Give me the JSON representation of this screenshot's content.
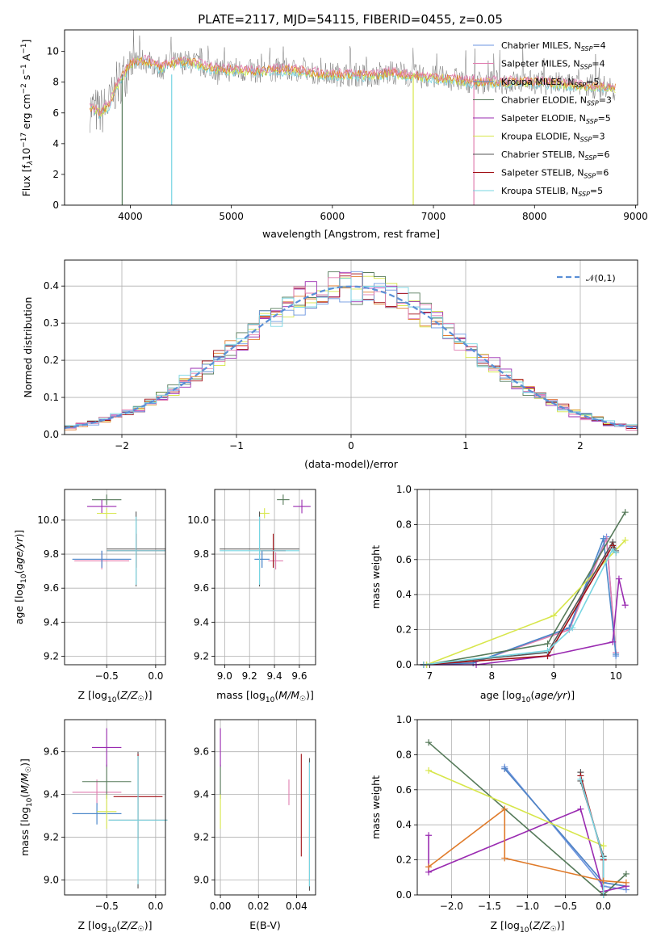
{
  "figure": {
    "title": "PLATE=2117, MJD=54115, FIBERID=0455, z=0.05",
    "models": [
      "Chabrier MILES",
      "Salpeter MILES",
      "Kroupa MILES",
      "Chabrier ELODIE",
      "Salpeter ELODIE",
      "Kroupa ELODIE",
      "Chabrier STELIB",
      "Salpeter STELIB",
      "Kroupa STELIB"
    ],
    "colors": [
      "#6b95e0",
      "#e07eb0",
      "#4a87c8",
      "#567a5a",
      "#9a2bb1",
      "#d7e64a",
      "#555555",
      "#a00f14",
      "#77d5e2"
    ]
  },
  "chart_data": [
    {
      "type": "line",
      "panel": "spectrum",
      "xlabel": "wavelength [Angstrom, rest frame]",
      "ylabel": "Flux [f_λ 10^-17 erg cm^-2 s^-1 A^-1]",
      "xlim": [
        3350,
        9020
      ],
      "ylim": [
        0,
        11.4
      ],
      "xticks": [
        "4000",
        "5000",
        "6000",
        "7000",
        "8000",
        "9000"
      ],
      "yticks": [
        "0",
        "2",
        "4",
        "6",
        "8",
        "10"
      ],
      "legend_position": "right",
      "legend": [
        "Chabrier MILES, N_SSP=4",
        "Salpeter MILES, N_SSP=4",
        "Kroupa MILES, N_SSP=5",
        "Chabrier ELODIE, N_SSP=3",
        "Salpeter ELODIE, N_SSP=5",
        "Kroupa ELODIE, N_SSP=3",
        "Chabrier STELIB, N_SSP=6",
        "Salpeter STELIB, N_SSP=6",
        "Kroupa STELIB, N_SSP=5"
      ],
      "spectrum_approx": {
        "x": [
          3600,
          3650,
          3700,
          3750,
          3800,
          3850,
          3900,
          3950,
          4000,
          4100,
          4200,
          4300,
          4400,
          4500,
          4600,
          4800,
          5000,
          5200,
          5400,
          5600,
          5800,
          6000,
          6200,
          6400,
          6600,
          6800,
          7000,
          7200,
          7400,
          7600,
          7800,
          8000,
          8200,
          8400,
          8600,
          8800
        ],
        "y": [
          6.3,
          6.2,
          6.0,
          6.3,
          6.6,
          7.6,
          8.1,
          8.6,
          9.2,
          9.4,
          9.3,
          8.9,
          9.2,
          9.3,
          9.3,
          8.9,
          8.8,
          8.7,
          8.8,
          8.8,
          8.6,
          8.5,
          8.5,
          8.4,
          8.6,
          8.4,
          8.3,
          8.2,
          8.0,
          8.0,
          8.0,
          8.0,
          7.9,
          7.8,
          7.7,
          7.6
        ]
      },
      "dropouts": [
        {
          "x": 3920,
          "series": "Chabrier ELODIE"
        },
        {
          "x": 4410,
          "series": "Kroupa STELIB"
        },
        {
          "x": 6800,
          "series": "Kroupa ELODIE"
        },
        {
          "x": 7400,
          "series": "Salpeter MILES"
        }
      ]
    },
    {
      "type": "area",
      "panel": "residual-histogram",
      "xlabel": "(data-model)/error",
      "ylabel": "Normed distribution",
      "xlim": [
        -2.5,
        2.5
      ],
      "ylim": [
        0,
        0.47
      ],
      "xticks": [
        "−2",
        "−1",
        "0",
        "1",
        "2"
      ],
      "yticks": [
        "0.0",
        "0.1",
        "0.2",
        "0.3",
        "0.4"
      ],
      "grid": true,
      "legend_position": "top-right",
      "legend": [
        "𝒩(0,1)"
      ],
      "reference_curve": {
        "name": "𝒩(0,1)",
        "mean": 0,
        "sigma": 1,
        "color": "#5a8fd6"
      },
      "bin_width": 0.1
    },
    {
      "type": "scatter",
      "panel": "age-vs-Z",
      "xlabel": "Z [log10(Z/Z☉)]",
      "ylabel": "age [log10(age/yr)]",
      "xlim": [
        -0.93,
        0.1
      ],
      "ylim": [
        9.15,
        10.18
      ],
      "xticks": [
        "−0.5",
        "0.0"
      ],
      "yticks": [
        "9.2",
        "9.4",
        "9.6",
        "9.8",
        "10.0"
      ],
      "grid": true,
      "points": [
        {
          "series": "Chabrier MILES",
          "x": -0.55,
          "y": 9.77,
          "xerr": 0.3,
          "yerr": 0.05
        },
        {
          "series": "Salpeter MILES",
          "x": -0.55,
          "y": 9.76,
          "xerr": 0.28,
          "yerr": 0.05
        },
        {
          "series": "Kroupa MILES",
          "x": -0.55,
          "y": 9.77,
          "xerr": 0.3,
          "yerr": 0.05
        },
        {
          "series": "Chabrier ELODIE",
          "x": -0.5,
          "y": 10.12,
          "xerr": 0.15,
          "yerr": 0.03
        },
        {
          "series": "Salpeter ELODIE",
          "x": -0.55,
          "y": 10.08,
          "xerr": 0.15,
          "yerr": 0.04
        },
        {
          "series": "Kroupa ELODIE",
          "x": -0.5,
          "y": 10.04,
          "xerr": 0.1,
          "yerr": 0.03
        },
        {
          "series": "Chabrier STELIB",
          "x": -0.2,
          "y": 9.83,
          "xerr": 0.3,
          "yerr": 0.22
        },
        {
          "series": "Salpeter STELIB",
          "x": -0.2,
          "y": 9.82,
          "xerr": 0.3,
          "yerr": 0.1
        },
        {
          "series": "Kroupa STELIB",
          "x": -0.2,
          "y": 9.82,
          "xerr": 0.3,
          "yerr": 0.2
        }
      ]
    },
    {
      "type": "scatter",
      "panel": "age-vs-mass",
      "xlabel": "mass [log10(M/M☉)]",
      "ylabel": "",
      "xlim": [
        8.92,
        9.73
      ],
      "ylim": [
        9.15,
        10.18
      ],
      "xticks": [
        "9.0",
        "9.2",
        "9.4",
        "9.6"
      ],
      "yticks": [
        "9.2",
        "9.4",
        "9.6",
        "9.8",
        "10.0"
      ],
      "grid": true,
      "points": [
        {
          "series": "Chabrier MILES",
          "x": 9.3,
          "y": 9.77,
          "xerr": 0.06,
          "yerr": 0.05
        },
        {
          "series": "Salpeter MILES",
          "x": 9.41,
          "y": 9.76,
          "xerr": 0.06,
          "yerr": 0.05
        },
        {
          "series": "Kroupa MILES",
          "x": 9.3,
          "y": 9.77,
          "xerr": 0.06,
          "yerr": 0.05
        },
        {
          "series": "Chabrier ELODIE",
          "x": 9.47,
          "y": 10.12,
          "xerr": 0.05,
          "yerr": 0.03
        },
        {
          "series": "Salpeter ELODIE",
          "x": 9.62,
          "y": 10.08,
          "xerr": 0.07,
          "yerr": 0.04
        },
        {
          "series": "Kroupa ELODIE",
          "x": 9.32,
          "y": 10.04,
          "xerr": 0.04,
          "yerr": 0.03
        },
        {
          "series": "Chabrier STELIB",
          "x": 9.28,
          "y": 9.83,
          "xerr": 0.32,
          "yerr": 0.22
        },
        {
          "series": "Salpeter STELIB",
          "x": 9.39,
          "y": 9.82,
          "xerr": 0.1,
          "yerr": 0.1
        },
        {
          "series": "Kroupa STELIB",
          "x": 9.28,
          "y": 9.82,
          "xerr": 0.32,
          "yerr": 0.2
        }
      ]
    },
    {
      "type": "line",
      "panel": "mass-weight-vs-age",
      "xlabel": "age [log10(age/yr)]",
      "ylabel": "mass weight",
      "xlim": [
        6.8,
        10.35
      ],
      "ylim": [
        0,
        1.0
      ],
      "xticks": [
        "7",
        "8",
        "9",
        "10"
      ],
      "yticks": [
        "0.0",
        "0.2",
        "0.4",
        "0.6",
        "0.8",
        "1.0"
      ],
      "grid": true,
      "series": [
        {
          "name": "Chabrier MILES",
          "x": [
            6.9,
            7.7,
            9.25,
            9.85,
            10.0
          ],
          "y": [
            0.0,
            0.01,
            0.21,
            0.73,
            0.05
          ]
        },
        {
          "name": "Salpeter MILES",
          "x": [
            6.9,
            7.7,
            9.25,
            9.85,
            10.0
          ],
          "y": [
            0.0,
            0.01,
            0.2,
            0.72,
            0.07
          ]
        },
        {
          "name": "Kroupa MILES",
          "x": [
            6.9,
            7.7,
            9.25,
            9.8,
            10.0
          ],
          "y": [
            0.0,
            0.01,
            0.21,
            0.72,
            0.06
          ]
        },
        {
          "name": "Chabrier ELODIE",
          "x": [
            6.95,
            8.9,
            10.15
          ],
          "y": [
            0.0,
            0.12,
            0.87
          ]
        },
        {
          "name": "Salpeter ELODIE",
          "x": [
            6.9,
            7.75,
            8.9,
            9.95,
            10.05,
            10.15
          ],
          "y": [
            0.0,
            0.0,
            0.05,
            0.13,
            0.49,
            0.34
          ]
        },
        {
          "name": "Kroupa ELODIE",
          "x": [
            6.95,
            9.0,
            10.15
          ],
          "y": [
            0.0,
            0.28,
            0.71
          ]
        },
        {
          "name": "Chabrier STELIB",
          "x": [
            6.9,
            8.9,
            9.95,
            10.0
          ],
          "y": [
            0.0,
            0.07,
            0.7,
            0.65
          ]
        },
        {
          "name": "Salpeter STELIB",
          "x": [
            6.9,
            8.9,
            9.95,
            10.0
          ],
          "y": [
            0.0,
            0.05,
            0.68,
            0.64
          ]
        },
        {
          "name": "Kroupa STELIB",
          "x": [
            6.9,
            8.9,
            9.3,
            9.95,
            10.0
          ],
          "y": [
            0.0,
            0.08,
            0.21,
            0.66,
            0.64
          ]
        }
      ]
    },
    {
      "type": "scatter",
      "panel": "mass-vs-Z",
      "xlabel": "Z [log10(Z/Z☉)]",
      "ylabel": "mass [log10(M/M☉)]",
      "xlim": [
        -0.93,
        0.1
      ],
      "ylim": [
        8.93,
        9.75
      ],
      "xticks": [
        "−0.5",
        "0.0"
      ],
      "yticks": [
        "9.0",
        "9.2",
        "9.4",
        "9.6"
      ],
      "grid": true,
      "points": [
        {
          "series": "Chabrier MILES",
          "x": -0.6,
          "y": 9.31,
          "xerr": 0.25,
          "yerr": 0.05
        },
        {
          "series": "Salpeter MILES",
          "x": -0.6,
          "y": 9.41,
          "xerr": 0.25,
          "yerr": 0.06
        },
        {
          "series": "Kroupa MILES",
          "x": -0.6,
          "y": 9.31,
          "xerr": 0.25,
          "yerr": 0.05
        },
        {
          "series": "Chabrier ELODIE",
          "x": -0.5,
          "y": 9.46,
          "xerr": 0.25,
          "yerr": 0.08
        },
        {
          "series": "Salpeter ELODIE",
          "x": -0.5,
          "y": 9.62,
          "xerr": 0.15,
          "yerr": 0.09
        },
        {
          "series": "Kroupa ELODIE",
          "x": -0.5,
          "y": 9.32,
          "xerr": 0.1,
          "yerr": 0.08
        },
        {
          "series": "Chabrier STELIB",
          "x": -0.18,
          "y": 9.28,
          "xerr": 0.3,
          "yerr": 0.32
        },
        {
          "series": "Salpeter STELIB",
          "x": -0.18,
          "y": 9.39,
          "xerr": 0.25,
          "yerr": 0.2
        },
        {
          "series": "Kroupa STELIB",
          "x": -0.18,
          "y": 9.28,
          "xerr": 0.3,
          "yerr": 0.3
        }
      ]
    },
    {
      "type": "scatter",
      "panel": "mass-vs-ebv",
      "xlabel": "E(B-V)",
      "ylabel": "",
      "xlim": [
        -0.003,
        0.05
      ],
      "ylim": [
        8.93,
        9.75
      ],
      "xticks": [
        "0.00",
        "0.02",
        "0.04"
      ],
      "yticks": [
        "9.0",
        "9.2",
        "9.4",
        "9.6"
      ],
      "grid": true,
      "points": [
        {
          "series": "Chabrier ELODIE",
          "x": 0.0,
          "y": 9.46,
          "yerr": 0.08
        },
        {
          "series": "Salpeter ELODIE",
          "x": 0.0,
          "y": 9.62,
          "yerr": 0.09
        },
        {
          "series": "Kroupa ELODIE",
          "x": 0.0,
          "y": 9.32,
          "yerr": 0.08
        },
        {
          "series": "Salpeter MILES",
          "x": 0.036,
          "y": 9.41,
          "yerr": 0.06
        },
        {
          "series": "Salpeter STELIB",
          "x": 0.0425,
          "y": 9.35,
          "yerr": 0.24
        },
        {
          "series": "Chabrier STELIB",
          "x": 0.0468,
          "y": 9.26,
          "yerr": 0.31
        },
        {
          "series": "Kroupa STELIB",
          "x": 0.0468,
          "y": 9.26,
          "yerr": 0.29
        }
      ]
    },
    {
      "type": "line",
      "panel": "mass-weight-vs-Z",
      "xlabel": "Z [log10(Z/Z☉)]",
      "ylabel": "mass weight",
      "xlim": [
        -2.45,
        0.45
      ],
      "ylim": [
        0,
        1.0
      ],
      "xticks": [
        "−2.0",
        "−1.5",
        "−1.0",
        "−0.5",
        "0.0"
      ],
      "yticks": [
        "0.0",
        "0.2",
        "0.4",
        "0.6",
        "0.8",
        "1.0"
      ],
      "grid": true,
      "series": [
        {
          "name": "Chabrier MILES",
          "x": [
            -1.3,
            0.0,
            0.3
          ],
          "y": [
            0.73,
            0.05,
            0.03
          ]
        },
        {
          "name": "Salpeter MILES",
          "x": [
            -1.3,
            0.0,
            0.3
          ],
          "y": [
            0.72,
            0.07,
            0.05
          ]
        },
        {
          "name": "Kroupa MILES",
          "x": [
            -1.3,
            0.0,
            0.3
          ],
          "y": [
            0.72,
            0.07,
            0.05
          ]
        },
        {
          "name": "Chabrier ELODIE",
          "x": [
            -2.3,
            0.0,
            0.3
          ],
          "y": [
            0.87,
            0.0,
            0.12
          ]
        },
        {
          "name": "Salpeter ELODIE",
          "x": [
            -2.3,
            -2.3,
            -0.3,
            0.0,
            0.3
          ],
          "y": [
            0.34,
            0.13,
            0.49,
            0.02,
            0.05
          ]
        },
        {
          "name": "Kroupa ELODIE",
          "x": [
            -2.3,
            0.0
          ],
          "y": [
            0.71,
            0.28
          ]
        },
        {
          "name": "Chabrier STELIB",
          "x": [
            -0.3,
            -0.3,
            0.0,
            0.0
          ],
          "y": [
            0.7,
            0.65,
            0.22,
            0.0
          ]
        },
        {
          "name": "Salpeter STELIB",
          "x": [
            -0.3,
            0.0,
            0.0
          ],
          "y": [
            0.68,
            0.2,
            0.0
          ]
        },
        {
          "name": "Kroupa STELIB",
          "x": [
            -0.3,
            0.0,
            0.0
          ],
          "y": [
            0.66,
            0.21,
            0.0
          ]
        },
        {
          "name": "orange-track",
          "x": [
            -2.3,
            -1.3,
            -1.3,
            0.0,
            0.3
          ],
          "y": [
            0.16,
            0.49,
            0.21,
            0.08,
            0.07
          ]
        }
      ]
    }
  ]
}
